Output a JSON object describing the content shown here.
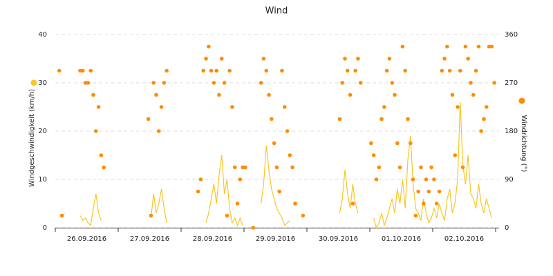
{
  "chart_data": {
    "type": "line_scatter",
    "title": "Wind",
    "categories": [
      "26.09.2016",
      "27.09.2016",
      "28.09.2016",
      "29.09.2016",
      "30.09.2016",
      "01.10.2016",
      "02.10.2016"
    ],
    "ylim": [
      0,
      40
    ],
    "yticks": [
      0,
      10,
      20,
      30,
      40
    ],
    "y2lim": [
      0,
      360
    ],
    "y2ticks": [
      0,
      90,
      180,
      270,
      360
    ],
    "grid": true,
    "series": [
      {
        "name": "Windgeschwindigkeit (km/h)",
        "color": "#f9c623",
        "kind": "line",
        "axis": "y",
        "values": [
          [
            null,
            null,
            2.5,
            3,
            null,
            null,
            null,
            null,
            null,
            2.5,
            1.5,
            2,
            1,
            0.5,
            4,
            7,
            3,
            1.5,
            null,
            null,
            null,
            null,
            null,
            null
          ],
          [
            null,
            null,
            null,
            null,
            null,
            null,
            null,
            null,
            null,
            null,
            null,
            null,
            2,
            7,
            3,
            5,
            8,
            4,
            1,
            null,
            null,
            null,
            null,
            null
          ],
          [
            null,
            null,
            null,
            null,
            null,
            null,
            null,
            null,
            null,
            1,
            3,
            6,
            9,
            5,
            11,
            15,
            7,
            10,
            4,
            1,
            2,
            0.5,
            2,
            0.5
          ],
          [
            null,
            null,
            null,
            0.5,
            null,
            null,
            5,
            9,
            17,
            12,
            8,
            6,
            4,
            3,
            2,
            0.5,
            1,
            1.5,
            null,
            null,
            null,
            1.5,
            null,
            null
          ],
          [
            null,
            null,
            null,
            null,
            null,
            null,
            null,
            null,
            null,
            null,
            null,
            null,
            3,
            6,
            12,
            7,
            4,
            9,
            5,
            3,
            null,
            null,
            null,
            null
          ],
          [
            null,
            2,
            0,
            1,
            3,
            0.5,
            2,
            4,
            6,
            3,
            8,
            5,
            10,
            4,
            14,
            19,
            9,
            4,
            3,
            1.5,
            6,
            3,
            1,
            2
          ],
          [
            4,
            2,
            5,
            3,
            1.5,
            6,
            8,
            3,
            5,
            10,
            26,
            13,
            9,
            15,
            7,
            6,
            4,
            9,
            5,
            3,
            6,
            4,
            2,
            null
          ]
        ]
      },
      {
        "name": "Windrichtung (°)",
        "color": "#ff8c00",
        "kind": "scatter",
        "axis": "y2",
        "values": [
          [
            null,
            292.5,
            22.5,
            null,
            null,
            null,
            null,
            null,
            null,
            292.5,
            292.5,
            270,
            270,
            292.5,
            247.5,
            180,
            225,
            135,
            112.5,
            null,
            null,
            null,
            null,
            null
          ],
          [
            null,
            null,
            null,
            null,
            null,
            null,
            null,
            null,
            null,
            null,
            null,
            202.5,
            22.5,
            270,
            247.5,
            180,
            225,
            270,
            292.5,
            null,
            null,
            null,
            null,
            null
          ],
          [
            null,
            null,
            null,
            null,
            null,
            null,
            67.5,
            90,
            292.5,
            315,
            337.5,
            292.5,
            270,
            292.5,
            247.5,
            315,
            270,
            22.5,
            292.5,
            225,
            112.5,
            45,
            90,
            112.5
          ],
          [
            112.5,
            null,
            null,
            0,
            null,
            null,
            270,
            315,
            292.5,
            247.5,
            202.5,
            157.5,
            112.5,
            67.5,
            292.5,
            225,
            180,
            135,
            112.5,
            45,
            null,
            null,
            22.5,
            null
          ],
          [
            null,
            null,
            null,
            null,
            null,
            null,
            null,
            null,
            null,
            null,
            null,
            null,
            202.5,
            270,
            315,
            292.5,
            247.5,
            45,
            292.5,
            315,
            270,
            null,
            null,
            null
          ],
          [
            157.5,
            135,
            90,
            112.5,
            202.5,
            225,
            292.5,
            315,
            270,
            247.5,
            157.5,
            112.5,
            337.5,
            292.5,
            202.5,
            157.5,
            90,
            22.5,
            67.5,
            112.5,
            45,
            90,
            67.5,
            112.5
          ],
          [
            90,
            45,
            67.5,
            292.5,
            315,
            337.5,
            292.5,
            247.5,
            135,
            225,
            292.5,
            112.5,
            337.5,
            315,
            270,
            247.5,
            292.5,
            337.5,
            180,
            202.5,
            225,
            337.5,
            337.5,
            270
          ]
        ]
      }
    ]
  }
}
